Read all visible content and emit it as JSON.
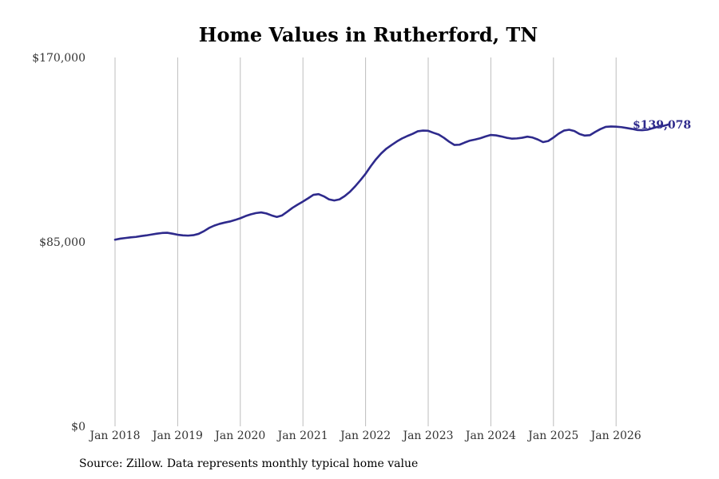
{
  "chart_data": {
    "type": "line",
    "title": "Home Values in Rutherford, TN",
    "xlabel": "",
    "ylabel": "",
    "y_ticks": [
      {
        "value": 0,
        "label": "$0"
      },
      {
        "value": 85000,
        "label": "$85,000"
      },
      {
        "value": 170000,
        "label": "$170,000"
      }
    ],
    "ylim": [
      0,
      170000
    ],
    "x_ticks": [
      "Jan 2018",
      "Jan 2019",
      "Jan 2020",
      "Jan 2021",
      "Jan 2022",
      "Jan 2023",
      "Jan 2024",
      "Jan 2025",
      "Jan 2026"
    ],
    "x_start": "Jan 2018",
    "grid": "vertical",
    "legend": "none",
    "line_color": "#2e2a8c",
    "end_label": "$139,078",
    "series": [
      {
        "values": [
          86000,
          86500,
          86800,
          87100,
          87300,
          87700,
          88000,
          88400,
          88800,
          89100,
          89200,
          88800,
          88300,
          88000,
          87900,
          88100,
          88700,
          89900,
          91400,
          92500,
          93300,
          93900,
          94400,
          95100,
          95900,
          96900,
          97700,
          98300,
          98600,
          98100,
          97200,
          96500,
          97200,
          98900,
          100700,
          102200,
          103600,
          105100,
          106700,
          107000,
          106000,
          104600,
          104100,
          104600,
          106100,
          108100,
          110600,
          113400,
          116400,
          119900,
          123100,
          125800,
          128000,
          129700,
          131300,
          132700,
          133800,
          134800,
          136000,
          136300,
          136200,
          135300,
          134500,
          133000,
          131200,
          129700,
          129800,
          130800,
          131700,
          132200,
          132800,
          133600,
          134300,
          134100,
          133600,
          133000,
          132600,
          132700,
          133000,
          133500,
          133100,
          132200,
          131000,
          131500,
          133100,
          134900,
          136300,
          136700,
          136100,
          134700,
          134000,
          134200,
          135700,
          137000,
          138000,
          138200,
          138100,
          137900,
          137500,
          137100,
          136600,
          136500,
          136700,
          137400,
          138100,
          138400,
          139078
        ]
      }
    ]
  },
  "footer": {
    "source": "Source: Zillow. Data represents monthly typical home value"
  }
}
